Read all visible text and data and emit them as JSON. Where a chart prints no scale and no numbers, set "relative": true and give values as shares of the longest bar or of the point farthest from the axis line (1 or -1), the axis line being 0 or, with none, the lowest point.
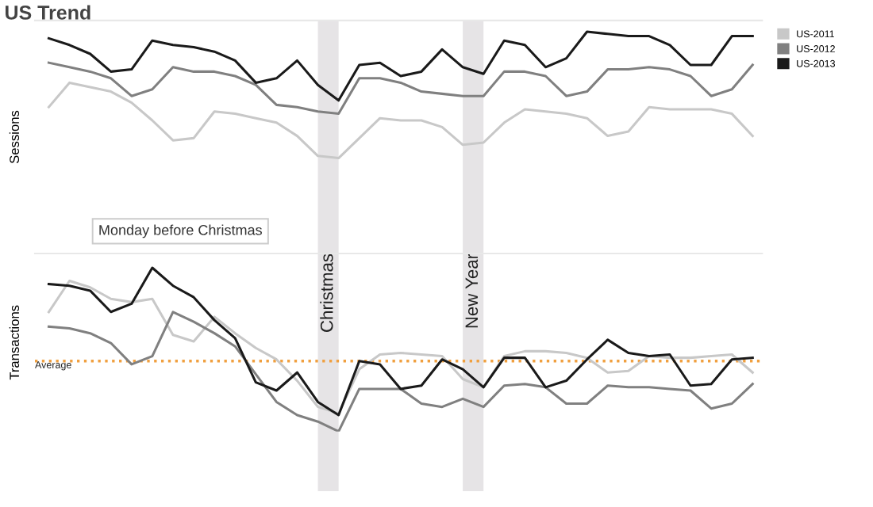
{
  "chart_data": [
    {
      "type": "line",
      "title": "US Trend",
      "ylabel": "Sessions",
      "relative": true,
      "legend": "top right",
      "grid": false,
      "marker": "none",
      "line_style": "solid",
      "categories": [
        null,
        null,
        null,
        null,
        null,
        null,
        null,
        null,
        null,
        null,
        null,
        null,
        null,
        null,
        null,
        null,
        null,
        null,
        null,
        null,
        null,
        null,
        null,
        null,
        null,
        null,
        null,
        null,
        null,
        null,
        null,
        null,
        null,
        null,
        null
      ],
      "series": [
        {
          "name": "US-2011",
          "color": "#c8c8c8",
          "values": [
            0.66,
            0.77,
            0.75,
            0.73,
            0.68,
            0.6,
            0.51,
            0.52,
            0.64,
            0.63,
            0.61,
            0.59,
            0.53,
            0.44,
            0.43,
            0.52,
            0.61,
            0.6,
            0.6,
            0.57,
            0.49,
            0.5,
            0.59,
            0.65,
            0.64,
            0.63,
            0.61,
            0.53,
            0.55,
            0.66,
            0.65,
            0.65,
            0.65,
            0.63,
            0.53
          ]
        },
        {
          "name": "US-2012",
          "color": "#808080",
          "values": [
            0.86,
            0.84,
            0.82,
            0.79,
            0.71,
            0.74,
            0.84,
            0.82,
            0.82,
            0.8,
            0.76,
            0.67,
            0.66,
            0.64,
            0.63,
            0.79,
            0.79,
            0.77,
            0.73,
            0.72,
            0.71,
            0.71,
            0.82,
            0.82,
            0.8,
            0.71,
            0.73,
            0.83,
            0.83,
            0.84,
            0.83,
            0.8,
            0.71,
            0.74,
            0.85
          ]
        },
        {
          "name": "US-2013",
          "color": "#1a1a1a",
          "values": [
            0.97,
            0.94,
            0.9,
            0.82,
            0.83,
            0.96,
            0.94,
            0.93,
            0.91,
            0.87,
            0.77,
            0.79,
            0.87,
            0.76,
            0.69,
            0.85,
            0.86,
            0.8,
            0.82,
            0.92,
            0.84,
            0.81,
            0.96,
            0.94,
            0.84,
            0.88,
            1.0,
            0.99,
            0.98,
            0.98,
            0.94,
            0.85,
            0.85,
            0.98,
            0.98
          ]
        }
      ]
    },
    {
      "type": "line",
      "ylabel": "Transactions",
      "relative": true,
      "legend": false,
      "grid": false,
      "marker": "none",
      "line_style": "solid",
      "categories": [
        null,
        null,
        null,
        null,
        null,
        null,
        null,
        null,
        null,
        null,
        null,
        null,
        null,
        null,
        null,
        null,
        null,
        null,
        null,
        null,
        null,
        null,
        null,
        null,
        null,
        null,
        null,
        null,
        null,
        null,
        null,
        null,
        null,
        null,
        null
      ],
      "ref_lines": [
        {
          "axis": "y",
          "value": 0.43,
          "label": "Average",
          "color": "#f0a040",
          "line_style": "dotted"
        }
      ],
      "annotations": [
        "Monday before Christmas",
        "Christmas",
        "New Year"
      ],
      "series": [
        {
          "color": "#c8c8c8",
          "values": [
            0.73,
            0.92,
            0.88,
            0.81,
            0.79,
            0.81,
            0.59,
            0.55,
            0.7,
            0.6,
            0.51,
            0.44,
            0.31,
            0.15,
            0.11,
            0.38,
            0.47,
            0.48,
            0.47,
            0.46,
            0.32,
            0.27,
            0.46,
            0.49,
            0.49,
            0.48,
            0.45,
            0.36,
            0.37,
            0.46,
            0.45,
            0.45,
            0.46,
            0.47,
            0.36
          ]
        },
        {
          "color": "#808080",
          "values": [
            0.64,
            0.63,
            0.6,
            0.54,
            0.41,
            0.46,
            0.73,
            0.67,
            0.6,
            0.52,
            0.35,
            0.18,
            0.1,
            0.06,
            0,
            0.26,
            0.26,
            0.26,
            0.17,
            0.15,
            0.2,
            0.15,
            0.28,
            0.29,
            0.27,
            0.17,
            0.17,
            0.28,
            0.27,
            0.27,
            0.26,
            0.25,
            0.14,
            0.17,
            0.29
          ]
        },
        {
          "color": "#1a1a1a",
          "values": [
            0.9,
            0.89,
            0.86,
            0.73,
            0.78,
            1.0,
            0.89,
            0.82,
            0.68,
            0.57,
            0.3,
            0.25,
            0.36,
            0.18,
            0.1,
            0.43,
            0.41,
            0.26,
            0.28,
            0.44,
            0.38,
            0.27,
            0.45,
            0.45,
            0.27,
            0.31,
            0.44,
            0.56,
            0.48,
            0.46,
            0.47,
            0.28,
            0.29,
            0.44,
            0.45
          ]
        }
      ]
    }
  ]
}
